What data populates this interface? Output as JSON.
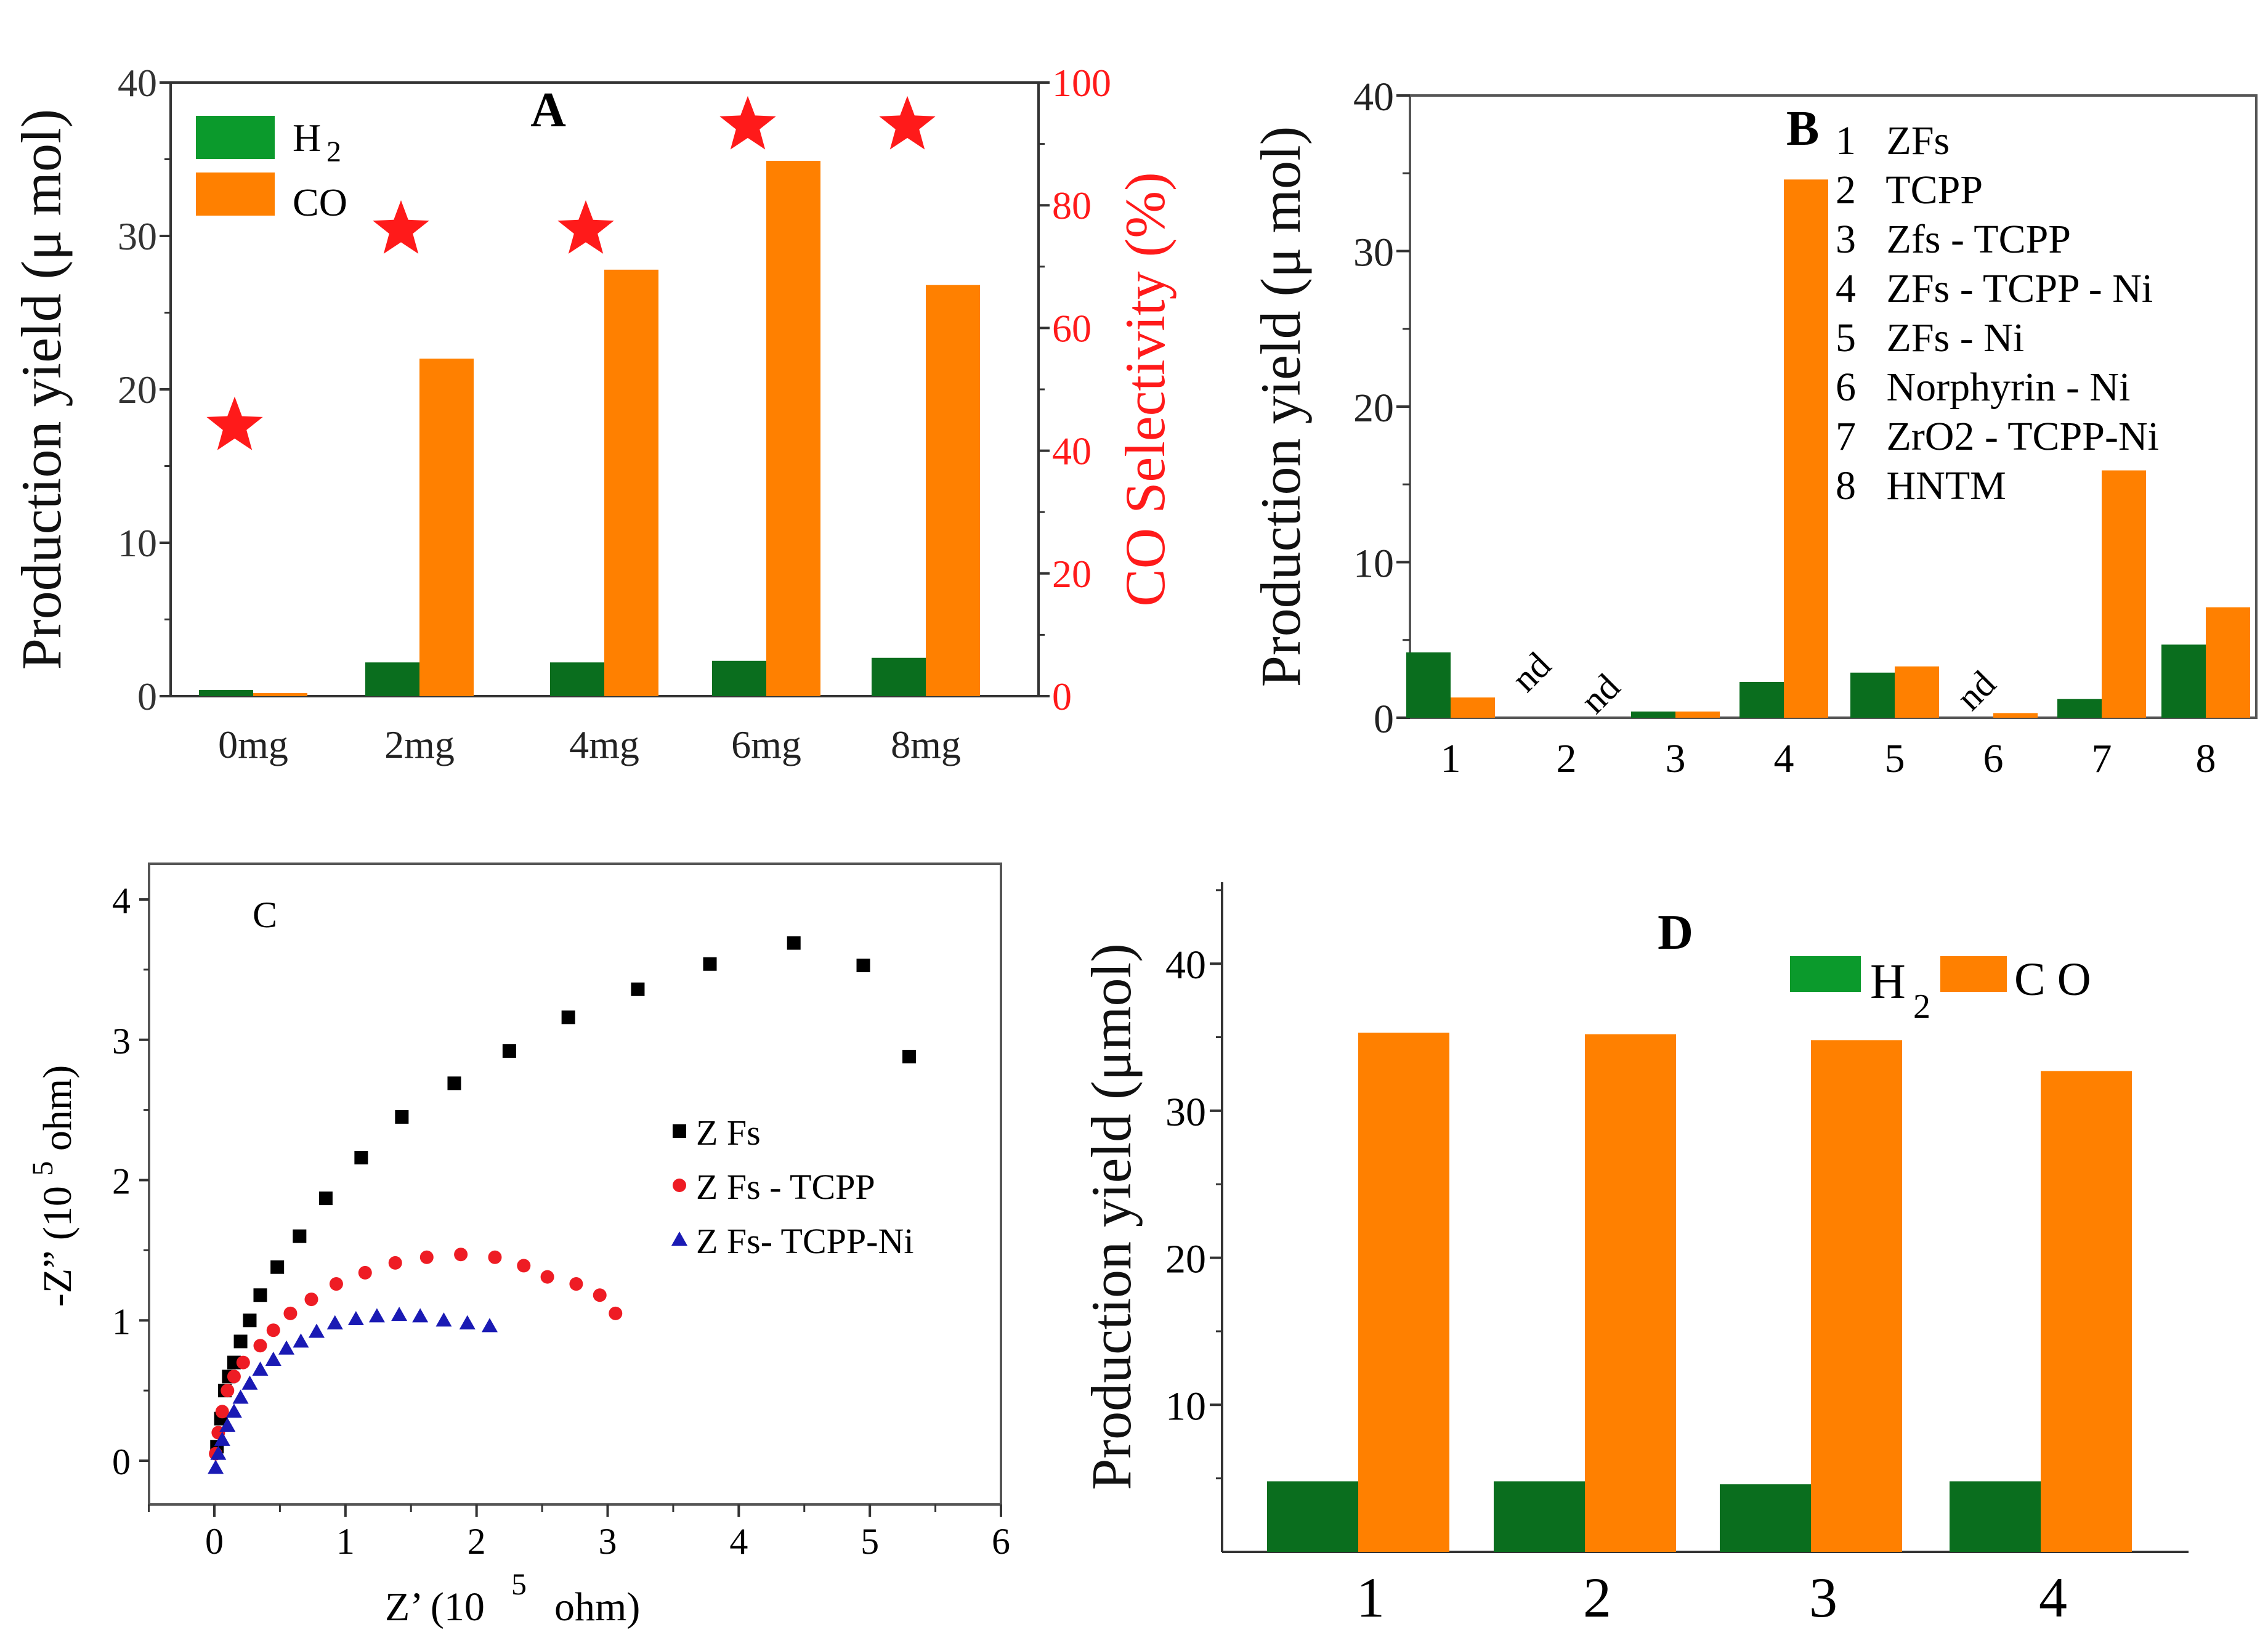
{
  "colors": {
    "h2": "#0a6e1e",
    "h2_legend": "#0b9a2c",
    "co": "#ff8000",
    "selectivity": "#ff1a1a",
    "zfs": "#000000",
    "zfs_tcpp": "#ee1c24",
    "zfs_tcpp_ni": "#1a1ab4"
  },
  "chart_data": [
    {
      "panel": "A",
      "type": "bar",
      "categories": [
        "0mg",
        "2mg",
        "4mg",
        "6mg",
        "8mg"
      ],
      "series": [
        {
          "name": "H2",
          "values": [
            0.4,
            2.2,
            2.2,
            2.3,
            2.5
          ]
        },
        {
          "name": "CO",
          "values": [
            0.2,
            22.0,
            27.8,
            34.9,
            26.8
          ]
        }
      ],
      "secondary_series": {
        "marker": "star",
        "values": [
          44,
          76,
          76,
          93,
          93
        ]
      },
      "ylabel": "Production yield  (μ mol)",
      "ylim": [
        0,
        40
      ],
      "yticks": [
        "0",
        "10",
        "20",
        "30",
        "40"
      ],
      "y2label": "CO Selectivity  (%)",
      "y2lim": [
        0,
        100
      ],
      "y2ticks": [
        "0",
        "20",
        "40",
        "60",
        "80",
        "100"
      ],
      "legend": {
        "placement": "top-left",
        "h2": "H",
        "h2_sub": "2",
        "co": "CO"
      }
    },
    {
      "panel": "B",
      "type": "bar",
      "categories": [
        "1",
        "2",
        "3",
        "4",
        "5",
        "6",
        "7",
        "8"
      ],
      "series": [
        {
          "name": "H2",
          "values": [
            4.2,
            null,
            0.4,
            2.3,
            2.9,
            null,
            1.2,
            4.7
          ]
        },
        {
          "name": "CO",
          "values": [
            1.3,
            null,
            0.4,
            34.6,
            3.3,
            0.3,
            15.9,
            7.1
          ]
        }
      ],
      "annotations": [
        {
          "category": "2",
          "text": "nd"
        },
        {
          "category": "2",
          "text": "nd"
        },
        {
          "category": "6",
          "text": "nd"
        }
      ],
      "ylabel": "Production yield  (μ mol)",
      "ylim": [
        0,
        40
      ],
      "yticks": [
        "0",
        "10",
        "20",
        "30",
        "40"
      ],
      "legend_list": [
        "1   ZFs",
        "2   TCPP",
        "3   Zfs - TCPP",
        "4   ZFs - TCPP - Ni",
        "5   ZFs - Ni",
        "6   Norphyrin - Ni",
        "7   ZrO2 - TCPP-Ni",
        "8   HNTM"
      ]
    },
    {
      "panel": "C",
      "type": "scatter",
      "xlabel": "Z’ (10",
      "xlabel_sup": "5",
      "xlabel_end": "ohm)",
      "ylabel": "-Z” (10",
      "ylabel_sup": "5",
      "ylabel_end": "ohm)",
      "xlim": [
        -0.5,
        6
      ],
      "ylim": [
        -0.3,
        4.3
      ],
      "xticks": [
        "0",
        "1",
        "2",
        "3",
        "4",
        "5",
        "6"
      ],
      "yticks": [
        "0",
        "1",
        "2",
        "3",
        "4"
      ],
      "legend": {
        "placement": "center-right"
      },
      "series": [
        {
          "name": "Z Fs",
          "marker": "square",
          "x": [
            0.02,
            0.05,
            0.08,
            0.11,
            0.15,
            0.2,
            0.27,
            0.35,
            0.48,
            0.65,
            0.85,
            1.12,
            1.43,
            1.83,
            2.25,
            2.7,
            3.23,
            3.78,
            4.42,
            4.95,
            5.3
          ],
          "y": [
            0.1,
            0.3,
            0.5,
            0.6,
            0.7,
            0.85,
            1.0,
            1.18,
            1.38,
            1.6,
            1.87,
            2.16,
            2.45,
            2.69,
            2.92,
            3.16,
            3.36,
            3.54,
            3.69,
            3.53,
            2.88
          ]
        },
        {
          "name": "Z Fs - TCPP",
          "marker": "circle",
          "x": [
            0.01,
            0.03,
            0.06,
            0.1,
            0.15,
            0.22,
            0.35,
            0.45,
            0.58,
            0.74,
            0.93,
            1.15,
            1.38,
            1.62,
            1.88,
            2.14,
            2.36,
            2.54,
            2.76,
            2.94,
            3.06
          ],
          "y": [
            0.05,
            0.2,
            0.35,
            0.5,
            0.6,
            0.7,
            0.82,
            0.93,
            1.05,
            1.15,
            1.26,
            1.34,
            1.41,
            1.45,
            1.47,
            1.45,
            1.39,
            1.31,
            1.26,
            1.18,
            1.05
          ]
        },
        {
          "name": "Z Fs- TCPP-Ni",
          "marker": "triangle",
          "x": [
            0.01,
            0.03,
            0.06,
            0.1,
            0.15,
            0.2,
            0.27,
            0.35,
            0.45,
            0.55,
            0.66,
            0.78,
            0.92,
            1.08,
            1.24,
            1.41,
            1.57,
            1.75,
            1.93,
            2.1
          ],
          "y": [
            -0.05,
            0.05,
            0.15,
            0.25,
            0.35,
            0.45,
            0.55,
            0.65,
            0.72,
            0.8,
            0.85,
            0.92,
            0.98,
            1.01,
            1.03,
            1.04,
            1.03,
            1.0,
            0.98,
            0.96
          ]
        }
      ]
    },
    {
      "panel": "D",
      "type": "bar",
      "categories": [
        "1",
        "2",
        "3",
        "4"
      ],
      "series": [
        {
          "name": "H2",
          "values": [
            4.8,
            4.8,
            4.6,
            4.8
          ]
        },
        {
          "name": "CO",
          "values": [
            35.3,
            35.2,
            34.8,
            32.7
          ]
        }
      ],
      "ylabel": "Production yield (μmol)",
      "ylim": [
        0,
        45
      ],
      "yticks": [
        "10",
        "20",
        "30",
        "40"
      ],
      "legend": {
        "placement": "top-right",
        "h2": "H",
        "h2_sub": "2",
        "co": "C O"
      }
    }
  ]
}
